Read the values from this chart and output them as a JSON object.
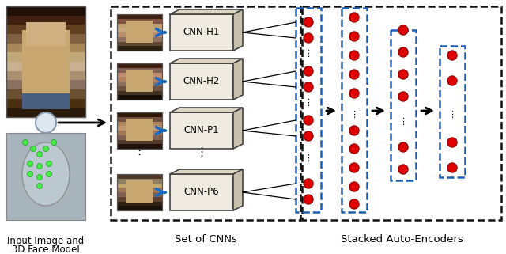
{
  "fig_width": 6.4,
  "fig_height": 3.21,
  "dpi": 100,
  "bg": "#ffffff",
  "cnn_labels": [
    "CNN-H1",
    "CNN-H2",
    "CNN-P1",
    "CNN-P6"
  ],
  "bottom_label1": "Input Image and",
  "bottom_label2": "3D Face Model",
  "bottom_label3": "Set of CNNs",
  "bottom_label4": "Stacked Auto-Encoders",
  "neuron_red": "#e00000",
  "neuron_edge": "#990000",
  "arrow_blue": "#1a6bbf",
  "dashed_blue": "#1a5fb4",
  "dashed_black": "#111111",
  "box_face": "#f0ebe0",
  "box_top": "#ddd5c0",
  "box_right": "#c8c0aa",
  "box_edge": "#444444",
  "green_dot": "#44cc44",
  "cross_color": "#8899aa"
}
